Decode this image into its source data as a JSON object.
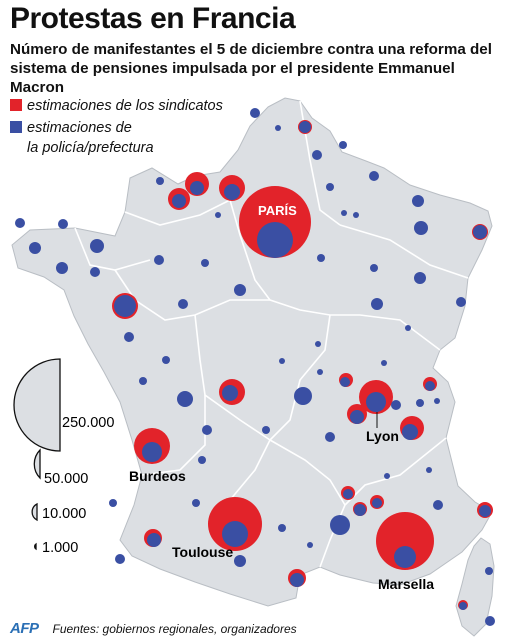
{
  "title": "Protestas en Francia",
  "subtitle": "Número de manifestantes el 5 de diciembre contra una reforma del sistema de pensiones impulsada por el presidente Emmanuel Macron",
  "legend": {
    "unions": {
      "label": "estimaciones de los sindicatos",
      "color": "#e2232a"
    },
    "police": {
      "label_line1": "estimaciones de",
      "label_line2": "la policía/prefectura",
      "color": "#3a4fa3"
    }
  },
  "size_scale": [
    "250.000",
    "50.000",
    "10.000",
    "1.000"
  ],
  "city_labels": {
    "paris": "PARÍS",
    "lyon": "Lyon",
    "burdeos": "Burdeos",
    "toulouse": "Toulouse",
    "marsella": "Marsella"
  },
  "footer": {
    "logo": "AFP",
    "source": "Fuentes: gobiernos regionales, organizadores"
  },
  "map_colors": {
    "land": "#dcdfe3",
    "border": "#ffffff",
    "outline": "#b9bec4"
  }
}
